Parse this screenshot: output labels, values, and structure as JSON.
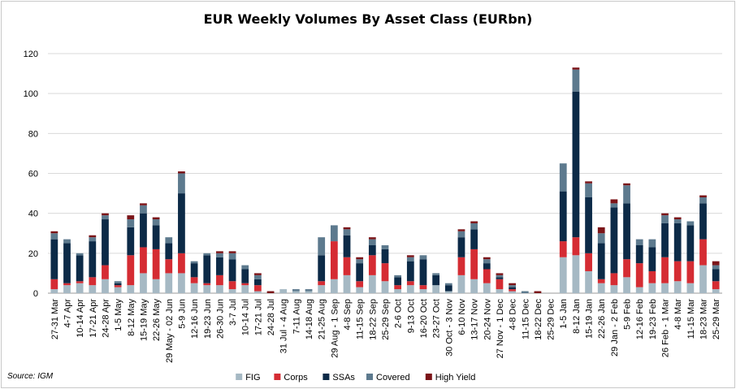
{
  "chart_data": {
    "type": "bar",
    "stacked": true,
    "title": "EUR Weekly Volumes By Asset Class (EURbn)",
    "source": "Source: IGM",
    "ylim": [
      0,
      120
    ],
    "yticks": [
      0,
      20,
      40,
      60,
      80,
      100,
      120
    ],
    "grid": true,
    "legend_position": "bottom",
    "categories": [
      "27-31 Mar",
      "4-7 Apr",
      "10-14 Apr",
      "17-21 Apr",
      "24-28 Apr",
      "1-5 May",
      "8-12 May",
      "15-19 May",
      "22-26 May",
      "29 May - 02 Jun",
      "5-9 Jun",
      "12-16 Jun",
      "19-23 Jun",
      "26-30 Jun",
      "3-7 Jul",
      "10-14 Jul",
      "17-21 Jul",
      "24-28 Jul",
      "31 Jul - 4 Aug",
      "7-11 Aug",
      "14-18 Aug",
      "21-25 Aug",
      "29 Aug - 1 Sep",
      "4-8 Sep",
      "11-15 Sep",
      "18-22 Sep",
      "25-29 Sep",
      "2-6 Oct",
      "9-13 Oct",
      "16-20 Oct",
      "23-27 Oct",
      "30 Oct - 3 Nov",
      "6-10 Nov",
      "13-17 Nov",
      "20-24 Nov",
      "27 Nov - 1 Dec",
      "4-8 Dec",
      "11-15 Dec",
      "18-22 Dec",
      "25-29 Dec",
      "1-5 Jan",
      "8-12 Jan",
      "15-19 Jan",
      "22-26 Jan",
      "29 Jan - 2 Feb",
      "5-9 Feb",
      "12-16 Feb",
      "19-23 Feb",
      "26 Feb - 1 Mar",
      "4-8 Mar",
      "11-15 Mar",
      "18-23 Mar",
      "25-29 Mar"
    ],
    "series": [
      {
        "name": "FIG",
        "color": "#a6b9c4",
        "values": [
          2,
          4,
          5,
          4,
          7,
          3,
          4,
          10,
          7,
          10,
          10,
          5,
          4,
          4,
          2,
          4,
          1,
          0,
          2,
          1,
          1,
          4,
          7,
          9,
          3,
          9,
          6,
          2,
          4,
          2,
          4,
          1,
          9,
          7,
          5,
          2,
          1,
          0,
          0,
          0,
          18,
          19,
          11,
          5,
          4,
          8,
          3,
          5,
          5,
          6,
          5,
          14,
          2
        ]
      },
      {
        "name": "Corps",
        "color": "#d52c33",
        "values": [
          5,
          1,
          1,
          4,
          7,
          1,
          15,
          13,
          15,
          7,
          10,
          3,
          1,
          5,
          4,
          1,
          3,
          0,
          0,
          0,
          0,
          2,
          19,
          9,
          3,
          10,
          9,
          2,
          2,
          2,
          0,
          0,
          9,
          15,
          7,
          5,
          1,
          0,
          0,
          0,
          8,
          9,
          9,
          2,
          6,
          9,
          12,
          6,
          13,
          10,
          11,
          13,
          4
        ]
      },
      {
        "name": "SSAs",
        "color": "#0c2a47",
        "values": [
          20,
          20,
          13,
          18,
          23,
          1,
          14,
          17,
          12,
          8,
          30,
          7,
          14,
          9,
          11,
          7,
          3,
          0,
          0,
          0,
          0,
          13,
          0,
          11,
          9,
          5,
          7,
          4,
          10,
          13,
          5,
          3,
          10,
          10,
          3,
          1,
          1,
          0,
          0,
          0,
          25,
          73,
          28,
          18,
          33,
          28,
          9,
          12,
          17,
          19,
          18,
          18,
          6
        ]
      },
      {
        "name": "Covered",
        "color": "#5d7a8e",
        "values": [
          3,
          2,
          1,
          2,
          2,
          1,
          4,
          4,
          3,
          3,
          10,
          1,
          1,
          2,
          3,
          2,
          2,
          0,
          0,
          1,
          1,
          9,
          8,
          3,
          2,
          3,
          2,
          1,
          2,
          2,
          1,
          1,
          3,
          3,
          2,
          1,
          1,
          1,
          0,
          0,
          14,
          11,
          7,
          5,
          2,
          9,
          3,
          4,
          4,
          2,
          2,
          3,
          2
        ]
      },
      {
        "name": "High Yield",
        "color": "#7b1418",
        "values": [
          1,
          0,
          0,
          1,
          1,
          0,
          2,
          1,
          1,
          0,
          1,
          0,
          0,
          1,
          1,
          0,
          1,
          1,
          0,
          0,
          0,
          0,
          0,
          1,
          1,
          1,
          0,
          0,
          1,
          0,
          0,
          0,
          1,
          1,
          1,
          1,
          1,
          0,
          1,
          0,
          0,
          1,
          1,
          3,
          2,
          1,
          0,
          0,
          1,
          1,
          0,
          1,
          2
        ]
      }
    ]
  }
}
